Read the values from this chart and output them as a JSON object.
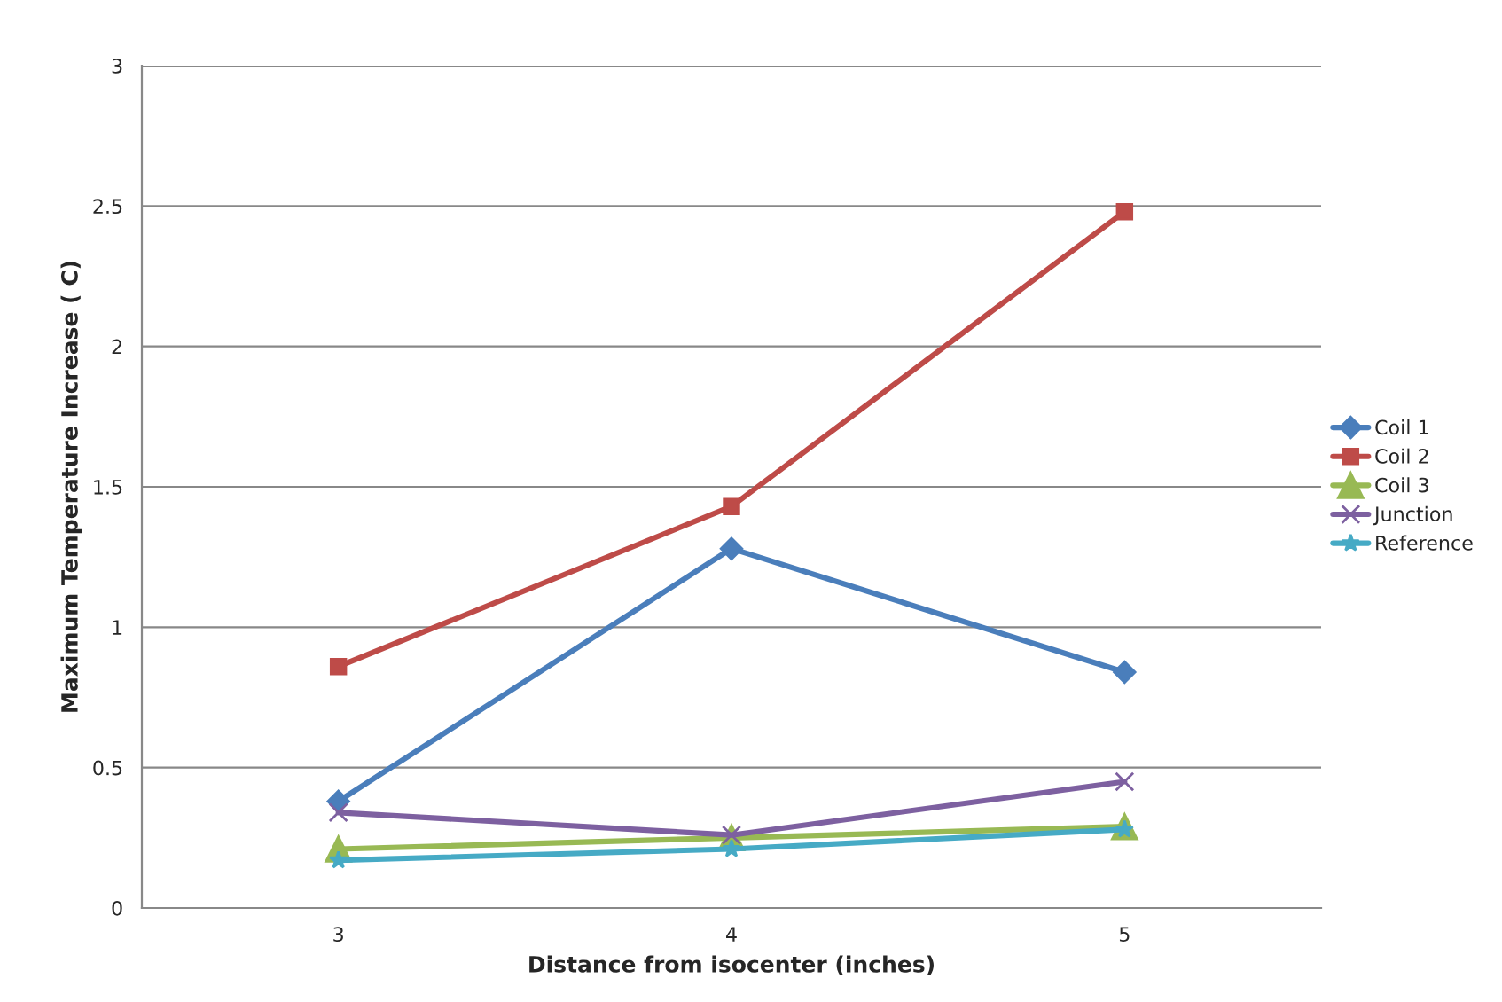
{
  "chart_data": {
    "type": "line",
    "xlabel": "Distance from isocenter (inches)",
    "ylabel": "Maximum Temperature Increase ( C)",
    "x": [
      3,
      4,
      5
    ],
    "xlim": [
      2.5,
      5.5
    ],
    "xticks": [
      3,
      4,
      5
    ],
    "ylim": [
      0,
      3
    ],
    "yticks": [
      0,
      0.5,
      1,
      1.5,
      2,
      2.5,
      3
    ],
    "grid": "y",
    "legend": "right",
    "series": [
      {
        "name": "Coil 1",
        "color": "#4a7ebb",
        "marker": "diamond",
        "values": [
          0.38,
          1.28,
          0.84
        ]
      },
      {
        "name": "Coil 2",
        "color": "#be4b48",
        "marker": "square",
        "values": [
          0.86,
          1.43,
          2.48
        ]
      },
      {
        "name": "Coil 3",
        "color": "#98b954",
        "marker": "triangle",
        "values": [
          0.21,
          0.25,
          0.29
        ]
      },
      {
        "name": "Junction",
        "color": "#7d60a0",
        "marker": "cross",
        "values": [
          0.34,
          0.26,
          0.45
        ]
      },
      {
        "name": "Reference",
        "color": "#46aac5",
        "marker": "star",
        "values": [
          0.17,
          0.21,
          0.28
        ]
      }
    ]
  }
}
